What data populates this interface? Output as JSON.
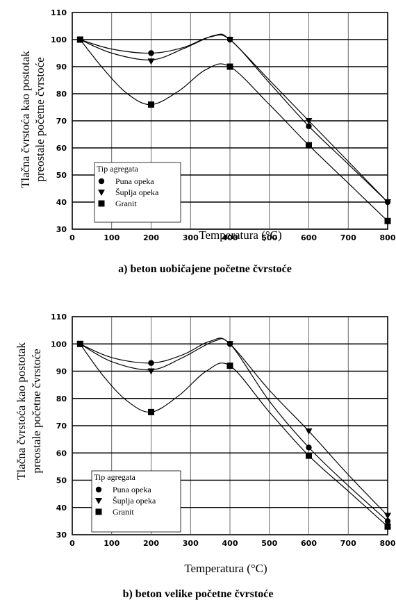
{
  "chart_data": [
    {
      "type": "line",
      "caption": "a) beton uobičajene početne čvrstoće",
      "ylabel_line1": "Tlačna čvrstoća kao postotak",
      "ylabel_line2": "preostale početne čvrstoće",
      "xlabel": "Temperatura (°C)",
      "xlim": [
        0,
        800
      ],
      "ylim": [
        30,
        110
      ],
      "xticks": [
        0,
        100,
        200,
        300,
        400,
        500,
        600,
        700,
        800
      ],
      "yticks": [
        30,
        40,
        50,
        60,
        70,
        80,
        90,
        100,
        110
      ],
      "grid": true,
      "legend": {
        "title": "Tip agregata",
        "placement": "lower-left",
        "entries": [
          "Puna opeka",
          "Šuplja opeka",
          "Granit"
        ]
      },
      "series": [
        {
          "name": "Puna opeka",
          "marker": "circle",
          "x": [
            20,
            200,
            400,
            600,
            800
          ],
          "y": [
            100,
            95,
            100,
            68,
            40
          ],
          "curve": [
            [
              20,
              100
            ],
            [
              100,
              96.5
            ],
            [
              200,
              95
            ],
            [
              280,
              97
            ],
            [
              350,
              101
            ],
            [
              400,
              100
            ],
            [
              500,
              84
            ],
            [
              600,
              68
            ],
            [
              700,
              54
            ],
            [
              800,
              40
            ]
          ]
        },
        {
          "name": "Šuplja opeka",
          "marker": "triangle-down",
          "x": [
            20,
            200,
            400,
            600,
            800
          ],
          "y": [
            100,
            92,
            100,
            70,
            40
          ],
          "curve": [
            [
              20,
              100
            ],
            [
              100,
              95
            ],
            [
              200,
              92.5
            ],
            [
              280,
              96.5
            ],
            [
              360,
              101.5
            ],
            [
              400,
              100
            ],
            [
              500,
              85
            ],
            [
              600,
              70
            ],
            [
              700,
              55
            ],
            [
              800,
              40
            ]
          ]
        },
        {
          "name": "Granit",
          "marker": "square",
          "x": [
            20,
            200,
            400,
            600,
            800
          ],
          "y": [
            100,
            76,
            90,
            61,
            33
          ],
          "curve": [
            [
              20,
              100
            ],
            [
              80,
              89
            ],
            [
              140,
              80
            ],
            [
              200,
              76
            ],
            [
              270,
              81
            ],
            [
              340,
              89
            ],
            [
              400,
              90
            ],
            [
              500,
              76
            ],
            [
              600,
              61
            ],
            [
              700,
              47
            ],
            [
              800,
              33
            ]
          ]
        }
      ]
    },
    {
      "type": "line",
      "caption": "b) beton velike početne čvrstoće",
      "ylabel_line1": "Tlačna čvrstoća kao postotak",
      "ylabel_line2": "preostale početne čvrstoće",
      "xlabel": "Temperatura (°C)",
      "xlim": [
        0,
        800
      ],
      "ylim": [
        30,
        110
      ],
      "xticks": [
        0,
        100,
        200,
        300,
        400,
        500,
        600,
        700,
        800
      ],
      "yticks": [
        30,
        40,
        50,
        60,
        70,
        80,
        90,
        100,
        110
      ],
      "grid": true,
      "legend": {
        "title": "Tip agregata",
        "placement": "lower-left",
        "entries": [
          "Puna opeka",
          "Šuplja opeka",
          "Granit"
        ]
      },
      "series": [
        {
          "name": "Puna opeka",
          "marker": "circle",
          "x": [
            20,
            200,
            400,
            600,
            800
          ],
          "y": [
            100,
            93,
            100,
            62,
            35
          ],
          "curve": [
            [
              20,
              100
            ],
            [
              100,
              95
            ],
            [
              200,
              93
            ],
            [
              280,
              96
            ],
            [
              350,
              101
            ],
            [
              400,
              100
            ],
            [
              500,
              79
            ],
            [
              600,
              62
            ],
            [
              700,
              48
            ],
            [
              800,
              35
            ]
          ]
        },
        {
          "name": "Šuplja opeka",
          "marker": "triangle-down",
          "x": [
            20,
            200,
            400,
            600,
            800
          ],
          "y": [
            100,
            90,
            100,
            68,
            37
          ],
          "curve": [
            [
              20,
              100
            ],
            [
              100,
              93.5
            ],
            [
              200,
              90.5
            ],
            [
              280,
              95
            ],
            [
              360,
              101
            ],
            [
              400,
              100
            ],
            [
              500,
              83
            ],
            [
              600,
              68
            ],
            [
              700,
              52
            ],
            [
              800,
              37
            ]
          ]
        },
        {
          "name": "Granit",
          "marker": "square",
          "x": [
            20,
            200,
            400,
            600,
            800
          ],
          "y": [
            100,
            75,
            92,
            59,
            33
          ],
          "curve": [
            [
              20,
              100
            ],
            [
              80,
              88
            ],
            [
              140,
              79
            ],
            [
              200,
              75
            ],
            [
              270,
              81
            ],
            [
              340,
              90
            ],
            [
              400,
              92
            ],
            [
              500,
              75
            ],
            [
              600,
              59
            ],
            [
              700,
              46
            ],
            [
              800,
              33
            ]
          ]
        }
      ]
    }
  ]
}
